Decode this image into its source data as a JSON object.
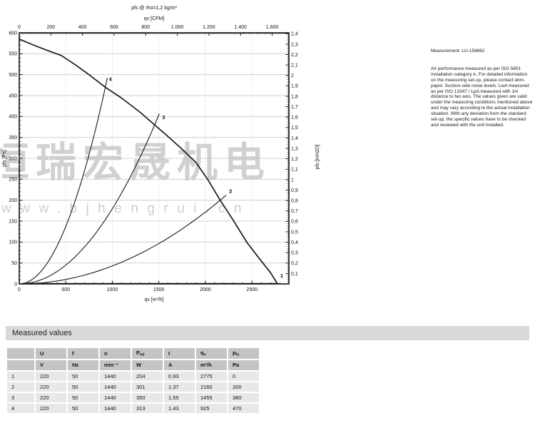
{
  "chart_data": {
    "type": "line",
    "title": "pfs @ rho=1,2 kg/m³",
    "axes": {
      "top": {
        "label": "qv [CFM]",
        "max": 1706,
        "minor_step": 10,
        "majors": [
          {
            "v": 0,
            "label": "0"
          },
          {
            "v": 200,
            "label": "200"
          },
          {
            "v": 400,
            "label": "400"
          },
          {
            "v": 600,
            "label": "600"
          },
          {
            "v": 800,
            "label": "800"
          },
          {
            "v": 1000,
            "label": "1.000"
          },
          {
            "v": 1200,
            "label": "1.200"
          },
          {
            "v": 1400,
            "label": "1.400"
          },
          {
            "v": 1600,
            "label": "1.600"
          }
        ]
      },
      "bottom": {
        "label": "qv [m³/h]",
        "max": 2898,
        "minor_step": 100,
        "majors": [
          {
            "v": 0,
            "label": "0"
          },
          {
            "v": 500,
            "label": "500"
          },
          {
            "v": 1000,
            "label": "1000"
          },
          {
            "v": 1500,
            "label": "1500"
          },
          {
            "v": 2000,
            "label": "2000"
          },
          {
            "v": 2500,
            "label": "2500"
          }
        ]
      },
      "left": {
        "label": "pfs [Pa]",
        "max": 600,
        "minor_step": 10,
        "majors": [
          {
            "v": 0,
            "label": "0"
          },
          {
            "v": 50,
            "label": "50"
          },
          {
            "v": 100,
            "label": "100"
          },
          {
            "v": 150,
            "label": "150"
          },
          {
            "v": 200,
            "label": "200"
          },
          {
            "v": 250,
            "label": "250"
          },
          {
            "v": 300,
            "label": "300"
          },
          {
            "v": 350,
            "label": "350"
          },
          {
            "v": 400,
            "label": "400"
          },
          {
            "v": 450,
            "label": "450"
          },
          {
            "v": 500,
            "label": "500"
          },
          {
            "v": 550,
            "label": "550"
          },
          {
            "v": 600,
            "label": "600"
          }
        ]
      },
      "right": {
        "label": "pfs [inH2O]",
        "max": 2.4,
        "minor_step": 0.02,
        "pa_per_unit": 249.089,
        "majors": [
          {
            "v": 0.1,
            "label": "0,1"
          },
          {
            "v": 0.2,
            "label": "0,2"
          },
          {
            "v": 0.3,
            "label": "0,3"
          },
          {
            "v": 0.4,
            "label": "0,4"
          },
          {
            "v": 0.5,
            "label": "0,5"
          },
          {
            "v": 0.6,
            "label": "0,6"
          },
          {
            "v": 0.7,
            "label": "0,7"
          },
          {
            "v": 0.8,
            "label": "0,8"
          },
          {
            "v": 0.9,
            "label": "0,9"
          },
          {
            "v": 1,
            "label": "1"
          },
          {
            "v": 1.1,
            "label": "1,1"
          },
          {
            "v": 1.2,
            "label": "1,2"
          },
          {
            "v": 1.3,
            "label": "1,3"
          },
          {
            "v": 1.4,
            "label": "1,4"
          },
          {
            "v": 1.5,
            "label": "1,5"
          },
          {
            "v": 1.6,
            "label": "1,6"
          },
          {
            "v": 1.7,
            "label": "1,7"
          },
          {
            "v": 1.8,
            "label": "1,8"
          },
          {
            "v": 1.9,
            "label": "1,9"
          },
          {
            "v": 2,
            "label": "2"
          },
          {
            "v": 2.1,
            "label": "2,1"
          },
          {
            "v": 2.2,
            "label": "2,2"
          },
          {
            "v": 2.3,
            "label": "2,3"
          },
          {
            "v": 2.4,
            "label": "2,4"
          }
        ]
      }
    },
    "grid": {
      "h_lines_pa": [
        50,
        100,
        150,
        200,
        250,
        300,
        350,
        400,
        450,
        500,
        550
      ],
      "v_lines_m3h": [
        500,
        1000,
        1500,
        2000,
        2500
      ]
    },
    "fan_curve": [
      [
        0,
        585
      ],
      [
        150,
        571
      ],
      [
        300,
        558
      ],
      [
        450,
        546
      ],
      [
        600,
        524
      ],
      [
        750,
        500
      ],
      [
        925,
        470
      ],
      [
        1100,
        444
      ],
      [
        1300,
        410
      ],
      [
        1455,
        380
      ],
      [
        1600,
        352
      ],
      [
        1750,
        322
      ],
      [
        1900,
        290
      ],
      [
        2030,
        248
      ],
      [
        2160,
        200
      ],
      [
        2300,
        152
      ],
      [
        2450,
        98
      ],
      [
        2600,
        55
      ],
      [
        2700,
        27
      ],
      [
        2775,
        0
      ]
    ],
    "operating_points": [
      {
        "label": "1",
        "q": 2775,
        "p": 0,
        "curve_end_q": 2775,
        "label_pos": [
          2805,
          20
        ]
      },
      {
        "label": "2",
        "q": 2160,
        "p": 200,
        "curve_end_q": 2225,
        "label_pos": [
          2255,
          222
        ]
      },
      {
        "label": "3",
        "q": 1455,
        "p": 380,
        "curve_end_q": 1505,
        "label_pos": [
          1535,
          398
        ]
      },
      {
        "label": "4",
        "q": 925,
        "p": 470,
        "curve_end_q": 947,
        "label_pos": [
          963,
          489
        ]
      }
    ]
  },
  "watermark": {
    "cjk": "恒瑞宏晟机电",
    "url": "www.bjhengrui.cn"
  },
  "notes": {
    "measurement": "Measurement: LU-154862",
    "body": "Air performance measured as per ISO 5801 installation category A. For detailed information on the measuring set-up, please contact ebm-papst. Suction-side noise levels: LwA measured as per ISO 13347 / LpA measured with 1m distance to fan axis. The values given are valid under the measuring conditions mentioned above and may vary according to the actual installation situation. With any deviation from the standard set-up, the specific values have to be checked and reviewed with the unit installed."
  },
  "measured_values": {
    "title": "Measured values",
    "columns": [
      {
        "label": "U",
        "sub": "",
        "unit": "V"
      },
      {
        "label": "f",
        "sub": "",
        "unit": "Hz"
      },
      {
        "label": "n",
        "sub": "",
        "unit": "min⁻¹"
      },
      {
        "label": "P",
        "sub": "ed",
        "unit": "W"
      },
      {
        "label": "I",
        "sub": "",
        "unit": "A"
      },
      {
        "label": "q",
        "sub": "v",
        "unit": "m³/h"
      },
      {
        "label": "p",
        "sub": "fs",
        "unit": "Pa"
      }
    ],
    "rows": [
      {
        "no": "1",
        "values": [
          "220",
          "50",
          "1440",
          "204",
          "0.93",
          "2775",
          "0"
        ]
      },
      {
        "no": "2",
        "values": [
          "220",
          "50",
          "1440",
          "301",
          "1.37",
          "2160",
          "200"
        ]
      },
      {
        "no": "3",
        "values": [
          "220",
          "50",
          "1440",
          "350",
          "1.55",
          "1455",
          "380"
        ]
      },
      {
        "no": "4",
        "values": [
          "220",
          "50",
          "1440",
          "313",
          "1.43",
          "925",
          "470"
        ]
      }
    ]
  },
  "colors": {
    "grid": "#c8c8c8",
    "axis": "#111111",
    "curve": "#1a1a1a",
    "watermark": "#c6c6c6",
    "table_header_bg": "#c4c4c4",
    "table_row_bg": "#e8e8e8",
    "section_bar_bg": "#d9d9d9"
  }
}
